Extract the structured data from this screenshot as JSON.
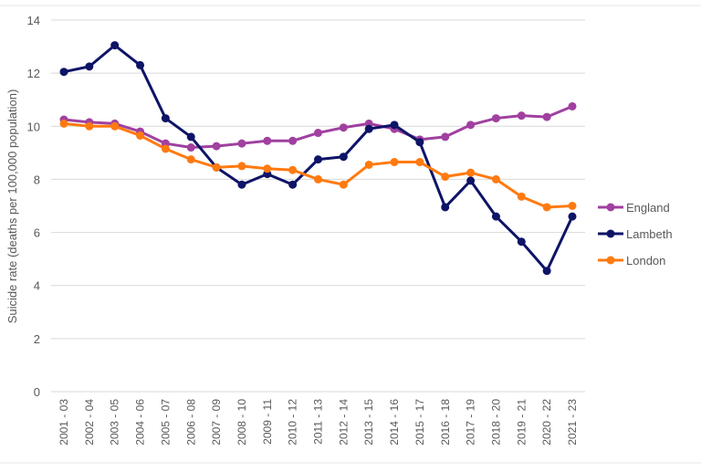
{
  "chart_data": {
    "type": "line",
    "title": "",
    "xlabel": "",
    "ylabel": "Suicide rate (deaths per 100,000 population)",
    "ylim": [
      0,
      14
    ],
    "yticks": [
      0,
      2,
      4,
      6,
      8,
      10,
      12,
      14
    ],
    "grid": true,
    "legend_position": "right",
    "categories": [
      "2001 - 03",
      "2002 - 04",
      "2003 - 05",
      "2004 - 06",
      "2005 - 07",
      "2006 - 08",
      "2007 - 09",
      "2008 - 10",
      "2009 - 11",
      "2010 - 12",
      "2011 - 13",
      "2012 - 14",
      "2013 - 15",
      "2014 - 16",
      "2015 - 17",
      "2016 - 18",
      "2017 - 19",
      "2018 - 20",
      "2019 - 21",
      "2020 - 22",
      "2021 - 23"
    ],
    "series": [
      {
        "name": "England",
        "color": "#A040A0",
        "values": [
          10.25,
          10.15,
          10.1,
          9.8,
          9.35,
          9.2,
          9.25,
          9.35,
          9.45,
          9.45,
          9.75,
          9.95,
          10.1,
          9.9,
          9.5,
          9.6,
          10.05,
          10.3,
          10.4,
          10.35,
          10.75
        ]
      },
      {
        "name": "Lambeth",
        "color": "#0E1466",
        "values": [
          12.05,
          12.25,
          13.05,
          12.3,
          10.3,
          9.6,
          8.45,
          7.8,
          8.2,
          7.8,
          8.75,
          8.85,
          9.9,
          10.05,
          9.4,
          6.95,
          7.95,
          6.6,
          5.65,
          4.55,
          6.6
        ]
      },
      {
        "name": "London",
        "color": "#FF7A10",
        "values": [
          10.1,
          10.0,
          10.0,
          9.65,
          9.15,
          8.75,
          8.45,
          8.5,
          8.4,
          8.35,
          8.0,
          7.8,
          8.55,
          8.65,
          8.65,
          8.1,
          8.25,
          8.0,
          7.35,
          6.95,
          7.0
        ]
      }
    ]
  }
}
